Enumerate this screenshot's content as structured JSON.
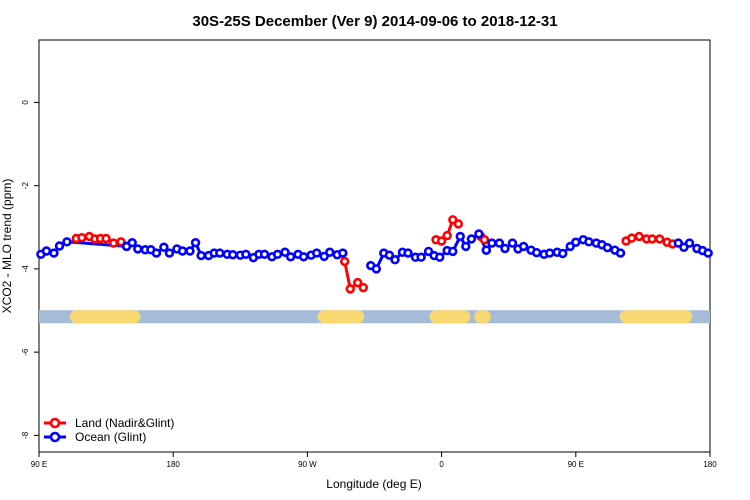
{
  "chart_data": {
    "type": "line",
    "title": "30S-25S December (Ver 9)   2014-09-06 to 2018-12-31",
    "xlabel": "Longitude (deg E)",
    "ylabel": "XCO2 - MLO trend (ppm)",
    "xlim": [
      90,
      450
    ],
    "ylim": [
      -8.4,
      1.5
    ],
    "x_ticks": [
      90,
      162,
      234,
      306,
      378,
      450
    ],
    "x_tick_labels": [
      "90 E",
      "180",
      "90 W",
      "0",
      "90 E",
      "180"
    ],
    "y_ticks": [
      0,
      -2,
      -4,
      -6,
      -8
    ],
    "y_tick_labels": [
      "0",
      "-2",
      "-4",
      "-6",
      "-8"
    ],
    "legend_position": "bottom-left",
    "land_ocean_bar": {
      "y": -5.15,
      "ocean_color": "#a4bcd8",
      "land_color": "#f8d870",
      "land_segments": [
        [
          110,
          141
        ],
        [
          243,
          261
        ],
        [
          303,
          318
        ],
        [
          327,
          329
        ],
        [
          405,
          437
        ]
      ]
    },
    "series": [
      {
        "name": "Land (Nadir&Glint)",
        "color": "#ff0000",
        "segments": [
          {
            "x": [
              110,
              113,
              117,
              120,
              123,
              126,
              130,
              134
            ],
            "y": [
              -3.27,
              -3.25,
              -3.22,
              -3.28,
              -3.27,
              -3.27,
              -3.38,
              -3.35
            ]
          },
          {
            "x": [
              254,
              257,
              261,
              264
            ],
            "y": [
              -3.82,
              -4.48,
              -4.33,
              -4.45
            ]
          },
          {
            "x": [
              303,
              306,
              309,
              312,
              315
            ],
            "y": [
              -3.3,
              -3.33,
              -3.2,
              -2.82,
              -2.92
            ]
          },
          {
            "x": [
              327,
              329
            ],
            "y": [
              -3.22,
              -3.3
            ]
          },
          {
            "x": [
              405,
              408,
              412,
              416,
              419,
              423,
              427,
              430
            ],
            "y": [
              -3.33,
              -3.26,
              -3.22,
              -3.28,
              -3.28,
              -3.28,
              -3.36,
              -3.4
            ]
          }
        ]
      },
      {
        "name": "Ocean (Glint)",
        "color": "#0000ff",
        "segments": [
          {
            "x": [
              91,
              94,
              98,
              101,
              105,
              137
            ],
            "y": [
              -3.65,
              -3.57,
              -3.62,
              -3.45,
              -3.35,
              -3.46
            ]
          },
          {
            "x": [
              137,
              140,
              143,
              147,
              150,
              153,
              157,
              160,
              164,
              167,
              171,
              174,
              177,
              181,
              184,
              187,
              191,
              194,
              198,
              201,
              205,
              208,
              211,
              215,
              218,
              222,
              225,
              229,
              232,
              236,
              239,
              243,
              246,
              250,
              253
            ],
            "y": [
              -3.46,
              -3.37,
              -3.52,
              -3.54,
              -3.54,
              -3.62,
              -3.48,
              -3.62,
              -3.52,
              -3.57,
              -3.57,
              -3.37,
              -3.68,
              -3.68,
              -3.62,
              -3.62,
              -3.65,
              -3.66,
              -3.67,
              -3.65,
              -3.73,
              -3.65,
              -3.65,
              -3.71,
              -3.65,
              -3.6,
              -3.71,
              -3.65,
              -3.71,
              -3.67,
              -3.62,
              -3.7,
              -3.6,
              -3.66,
              -3.62
            ]
          },
          {
            "x": [
              268,
              271,
              275,
              278,
              281,
              285,
              288,
              292,
              295,
              299,
              302,
              305,
              309,
              312,
              316,
              319,
              322,
              326,
              330
            ],
            "y": [
              -3.92,
              -4.0,
              -3.62,
              -3.67,
              -3.78,
              -3.6,
              -3.62,
              -3.72,
              -3.72,
              -3.58,
              -3.68,
              -3.72,
              -3.56,
              -3.58,
              -3.22,
              -3.46,
              -3.28,
              -3.16,
              -3.55
            ]
          },
          {
            "x": [
              330,
              333,
              337,
              340,
              344,
              347,
              350,
              354,
              357,
              361,
              364,
              368,
              371,
              375,
              378,
              382,
              385,
              389,
              392,
              395,
              399,
              402
            ],
            "y": [
              -3.55,
              -3.38,
              -3.38,
              -3.51,
              -3.38,
              -3.52,
              -3.46,
              -3.55,
              -3.61,
              -3.65,
              -3.62,
              -3.6,
              -3.63,
              -3.46,
              -3.36,
              -3.3,
              -3.35,
              -3.38,
              -3.42,
              -3.49,
              -3.55,
              -3.62
            ]
          },
          {
            "x": [
              433,
              436,
              439,
              443,
              446,
              449
            ],
            "y": [
              -3.38,
              -3.48,
              -3.38,
              -3.51,
              -3.56,
              -3.62
            ]
          }
        ]
      }
    ]
  }
}
